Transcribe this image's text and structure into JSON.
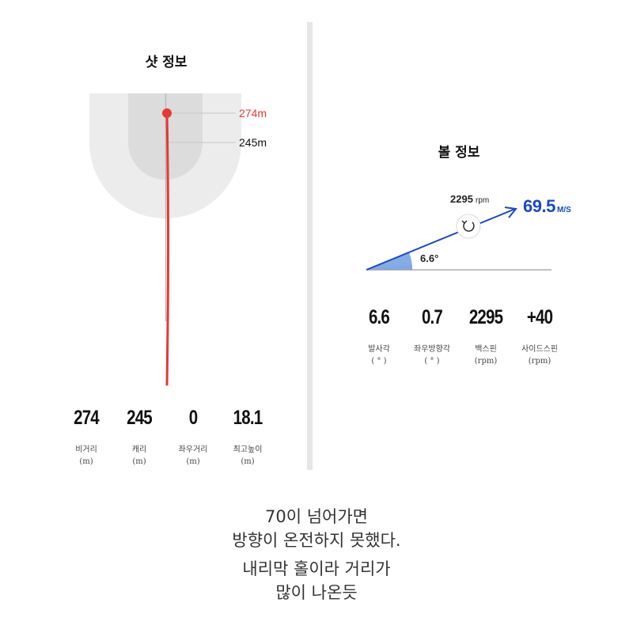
{
  "shot_info": {
    "title": "샷 정보",
    "markers": [
      {
        "label": "274m",
        "color": "#e53935"
      },
      {
        "label": "245m",
        "color": "#111111"
      }
    ],
    "stats": [
      {
        "value": "274",
        "label": "비거리",
        "unit": "(m)"
      },
      {
        "value": "245",
        "label": "캐리",
        "unit": "(m)"
      },
      {
        "value": "0",
        "label": "좌우거리",
        "unit": "(m)"
      },
      {
        "value": "18.1",
        "label": "최고높이",
        "unit": "(m)"
      }
    ],
    "colors": {
      "trajectory": "#e53935",
      "zone_outer": "#ececec",
      "zone_inner": "#dcdcdc"
    }
  },
  "ball_info": {
    "title": "볼 정보",
    "spin": {
      "value": "2295",
      "unit": "rpm"
    },
    "speed": {
      "value": "69.5",
      "unit": "M/S"
    },
    "angle_label": "6.6°",
    "stats": [
      {
        "value": "6.6",
        "label": "발사각",
        "unit": "( ° )"
      },
      {
        "value": "0.7",
        "label": "좌우방향각",
        "unit": "( ° )"
      },
      {
        "value": "2295",
        "label": "백스핀",
        "unit": "(rpm)"
      },
      {
        "value": "+40",
        "label": "사이드스핀",
        "unit": "(rpm)"
      }
    ],
    "colors": {
      "vector": "#1a47c9",
      "angle_fill": "#7fa8e6",
      "speed_text": "#1a47c9"
    }
  },
  "caption": {
    "line1": "70이 넘어가면",
    "line2": "방향이 온전하지 못했다.",
    "line3": "내리막 홀이라 거리가",
    "line4": "많이 나온듯"
  }
}
